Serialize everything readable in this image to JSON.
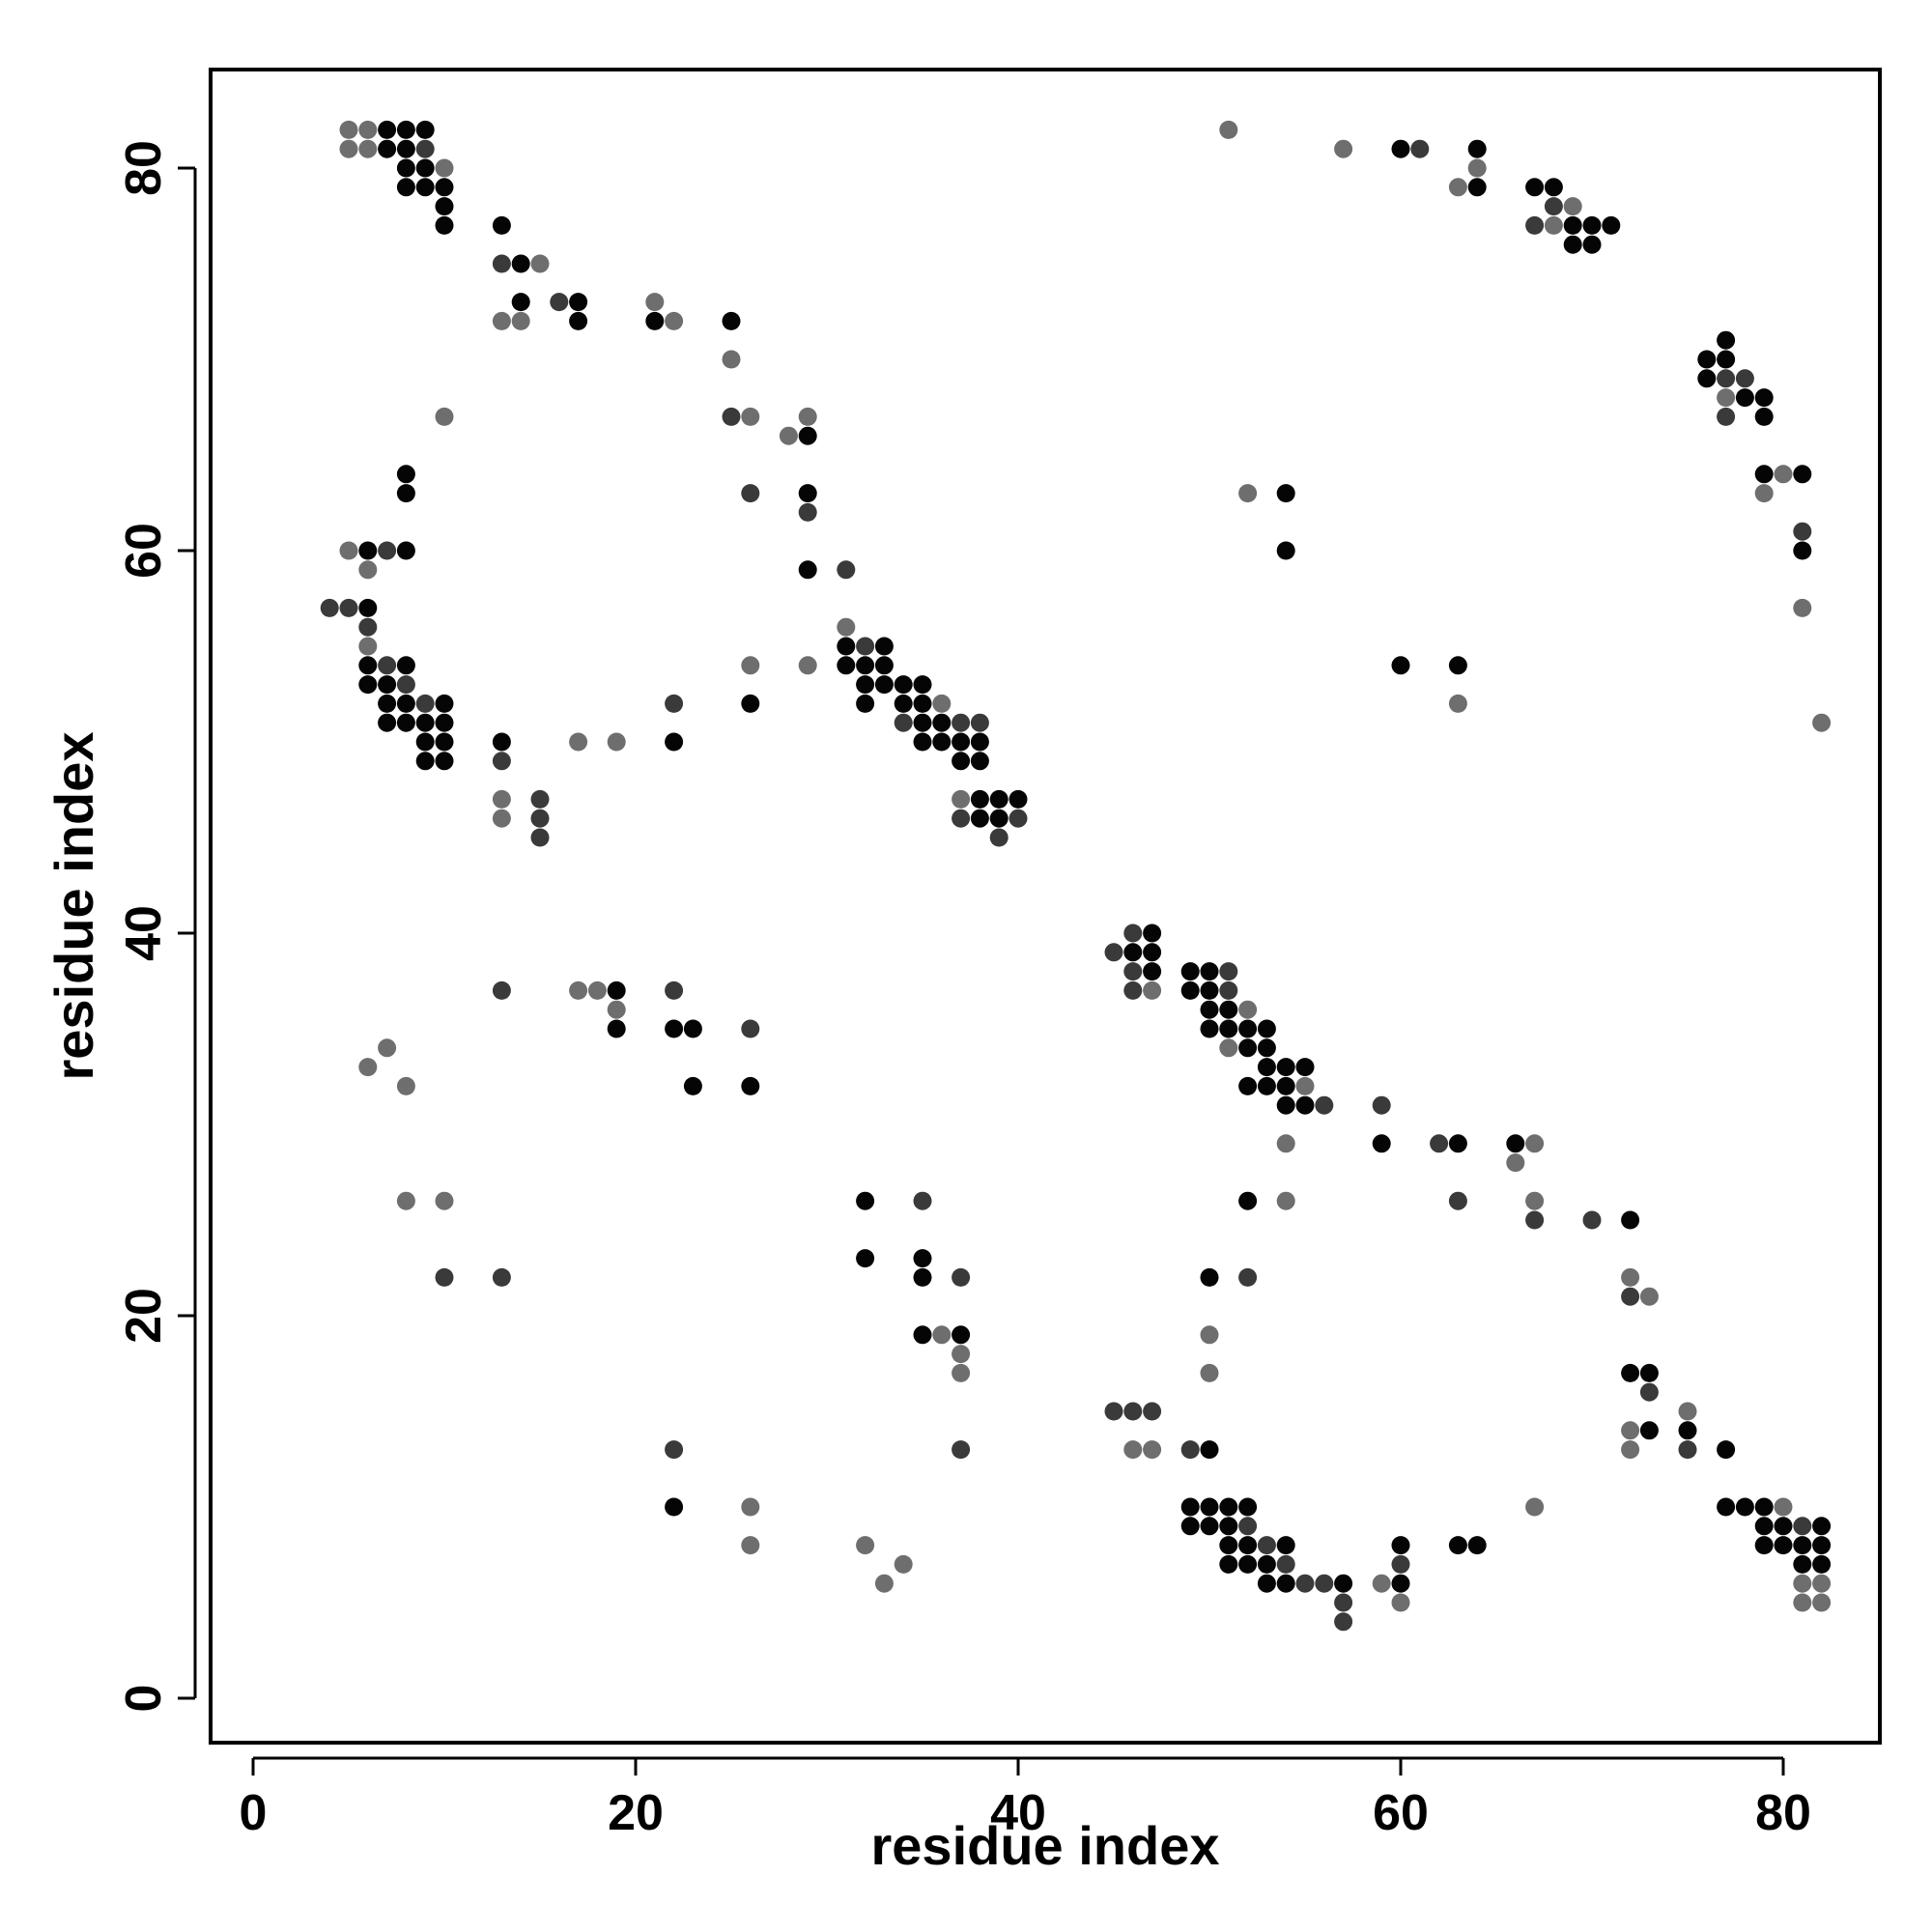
{
  "chart_data": {
    "type": "scatter",
    "title": "",
    "xlabel": "residue index",
    "ylabel": "residue index",
    "xlim": [
      -2.3,
      85
    ],
    "ylim": [
      -2.3,
      85
    ],
    "xticks": [
      0,
      20,
      40,
      60,
      80
    ],
    "yticks": [
      0,
      20,
      40,
      60,
      80
    ],
    "grid": false,
    "legend": "none",
    "shade_colors": {
      "dark": "#050505",
      "mid": "#3a3a3a",
      "light": "#6e6e6e"
    },
    "points": [
      [
        5,
        81,
        "l"
      ],
      [
        6,
        81,
        "l"
      ],
      [
        7,
        81,
        "d"
      ],
      [
        8,
        81,
        "d"
      ],
      [
        9,
        81,
        "m"
      ],
      [
        5,
        82,
        "l"
      ],
      [
        6,
        82,
        "l"
      ],
      [
        7,
        82,
        "d"
      ],
      [
        8,
        82,
        "d"
      ],
      [
        9,
        82,
        "d"
      ],
      [
        8,
        80,
        "d"
      ],
      [
        9,
        80,
        "d"
      ],
      [
        10,
        80,
        "l"
      ],
      [
        8,
        79,
        "d"
      ],
      [
        9,
        79,
        "d"
      ],
      [
        10,
        79,
        "d"
      ],
      [
        10,
        78,
        "d"
      ],
      [
        10,
        77,
        "d"
      ],
      [
        13,
        77,
        "d"
      ],
      [
        13,
        75,
        "m"
      ],
      [
        14,
        75,
        "d"
      ],
      [
        15,
        75,
        "l"
      ],
      [
        14,
        73,
        "d"
      ],
      [
        16,
        73,
        "m"
      ],
      [
        17,
        73,
        "d"
      ],
      [
        13,
        72,
        "l"
      ],
      [
        14,
        72,
        "l"
      ],
      [
        17,
        72,
        "d"
      ],
      [
        21,
        73,
        "l"
      ],
      [
        21,
        72,
        "d"
      ],
      [
        22,
        72,
        "l"
      ],
      [
        25,
        72,
        "d"
      ],
      [
        25,
        70,
        "l"
      ],
      [
        25,
        67,
        "m"
      ],
      [
        26,
        67,
        "l"
      ],
      [
        28,
        66,
        "l"
      ],
      [
        29,
        67,
        "l"
      ],
      [
        29,
        66,
        "d"
      ],
      [
        26,
        63,
        "m"
      ],
      [
        29,
        63,
        "d"
      ],
      [
        29,
        62,
        "m"
      ],
      [
        29,
        59,
        "d"
      ],
      [
        31,
        59,
        "m"
      ],
      [
        10,
        67,
        "l"
      ],
      [
        8,
        64,
        "d"
      ],
      [
        8,
        63,
        "d"
      ],
      [
        5,
        60,
        "l"
      ],
      [
        6,
        60,
        "d"
      ],
      [
        7,
        60,
        "m"
      ],
      [
        8,
        60,
        "d"
      ],
      [
        6,
        59,
        "l"
      ],
      [
        4,
        57,
        "m"
      ],
      [
        5,
        57,
        "m"
      ],
      [
        6,
        57,
        "d"
      ],
      [
        6,
        56,
        "m"
      ],
      [
        6,
        55,
        "l"
      ],
      [
        6,
        54,
        "d"
      ],
      [
        7,
        54,
        "m"
      ],
      [
        8,
        54,
        "d"
      ],
      [
        6,
        53,
        "d"
      ],
      [
        7,
        53,
        "d"
      ],
      [
        8,
        53,
        "m"
      ],
      [
        7,
        52,
        "d"
      ],
      [
        8,
        52,
        "d"
      ],
      [
        9,
        52,
        "m"
      ],
      [
        10,
        52,
        "d"
      ],
      [
        7,
        51,
        "d"
      ],
      [
        8,
        51,
        "d"
      ],
      [
        9,
        51,
        "d"
      ],
      [
        10,
        51,
        "d"
      ],
      [
        9,
        50,
        "d"
      ],
      [
        10,
        50,
        "d"
      ],
      [
        9,
        49,
        "d"
      ],
      [
        10,
        49,
        "d"
      ],
      [
        13,
        50,
        "d"
      ],
      [
        13,
        49,
        "m"
      ],
      [
        13,
        47,
        "l"
      ],
      [
        15,
        47,
        "m"
      ],
      [
        13,
        46,
        "l"
      ],
      [
        15,
        46,
        "m"
      ],
      [
        15,
        45,
        "m"
      ],
      [
        17,
        50,
        "l"
      ],
      [
        19,
        50,
        "l"
      ],
      [
        22,
        52,
        "m"
      ],
      [
        22,
        50,
        "d"
      ],
      [
        26,
        54,
        "l"
      ],
      [
        26,
        52,
        "d"
      ],
      [
        29,
        54,
        "l"
      ],
      [
        31,
        56,
        "l"
      ],
      [
        31,
        55,
        "d"
      ],
      [
        32,
        55,
        "m"
      ],
      [
        33,
        55,
        "d"
      ],
      [
        31,
        54,
        "d"
      ],
      [
        32,
        54,
        "d"
      ],
      [
        33,
        54,
        "d"
      ],
      [
        32,
        53,
        "d"
      ],
      [
        33,
        53,
        "d"
      ],
      [
        34,
        53,
        "d"
      ],
      [
        35,
        53,
        "d"
      ],
      [
        32,
        52,
        "d"
      ],
      [
        34,
        52,
        "d"
      ],
      [
        35,
        52,
        "d"
      ],
      [
        36,
        52,
        "l"
      ],
      [
        34,
        51,
        "m"
      ],
      [
        35,
        51,
        "d"
      ],
      [
        36,
        51,
        "d"
      ],
      [
        37,
        51,
        "m"
      ],
      [
        38,
        51,
        "m"
      ],
      [
        35,
        50,
        "d"
      ],
      [
        36,
        50,
        "d"
      ],
      [
        37,
        50,
        "d"
      ],
      [
        38,
        50,
        "d"
      ],
      [
        37,
        49,
        "d"
      ],
      [
        38,
        49,
        "d"
      ],
      [
        37,
        47,
        "l"
      ],
      [
        38,
        47,
        "d"
      ],
      [
        39,
        47,
        "d"
      ],
      [
        40,
        47,
        "d"
      ],
      [
        37,
        46,
        "m"
      ],
      [
        38,
        46,
        "d"
      ],
      [
        39,
        46,
        "d"
      ],
      [
        40,
        46,
        "m"
      ],
      [
        39,
        45,
        "m"
      ],
      [
        51,
        82,
        "l"
      ],
      [
        57,
        81,
        "l"
      ],
      [
        60,
        81,
        "d"
      ],
      [
        61,
        81,
        "m"
      ],
      [
        64,
        81,
        "d"
      ],
      [
        64,
        80,
        "l"
      ],
      [
        63,
        79,
        "l"
      ],
      [
        64,
        79,
        "d"
      ],
      [
        67,
        79,
        "d"
      ],
      [
        68,
        79,
        "d"
      ],
      [
        68,
        78,
        "m"
      ],
      [
        69,
        78,
        "l"
      ],
      [
        67,
        77,
        "m"
      ],
      [
        68,
        77,
        "l"
      ],
      [
        69,
        77,
        "d"
      ],
      [
        70,
        77,
        "d"
      ],
      [
        71,
        77,
        "d"
      ],
      [
        69,
        76,
        "d"
      ],
      [
        70,
        76,
        "d"
      ],
      [
        77,
        71,
        "d"
      ],
      [
        76,
        70,
        "d"
      ],
      [
        77,
        70,
        "d"
      ],
      [
        76,
        69,
        "d"
      ],
      [
        77,
        69,
        "m"
      ],
      [
        78,
        69,
        "m"
      ],
      [
        77,
        68,
        "l"
      ],
      [
        78,
        68,
        "d"
      ],
      [
        79,
        68,
        "d"
      ],
      [
        77,
        67,
        "m"
      ],
      [
        79,
        67,
        "d"
      ],
      [
        79,
        64,
        "d"
      ],
      [
        80,
        64,
        "l"
      ],
      [
        81,
        64,
        "d"
      ],
      [
        79,
        63,
        "l"
      ],
      [
        81,
        61,
        "m"
      ],
      [
        81,
        60,
        "d"
      ],
      [
        81,
        57,
        "l"
      ],
      [
        82,
        51,
        "l"
      ],
      [
        52,
        63,
        "l"
      ],
      [
        54,
        63,
        "d"
      ],
      [
        54,
        60,
        "d"
      ],
      [
        60,
        54,
        "d"
      ],
      [
        63,
        54,
        "d"
      ],
      [
        63,
        52,
        "l"
      ],
      [
        45,
        39,
        "m"
      ],
      [
        46,
        40,
        "m"
      ],
      [
        47,
        40,
        "d"
      ],
      [
        46,
        39,
        "d"
      ],
      [
        47,
        39,
        "d"
      ],
      [
        46,
        38,
        "m"
      ],
      [
        47,
        38,
        "d"
      ],
      [
        46,
        37,
        "m"
      ],
      [
        47,
        37,
        "l"
      ],
      [
        49,
        38,
        "d"
      ],
      [
        50,
        38,
        "d"
      ],
      [
        51,
        38,
        "m"
      ],
      [
        49,
        37,
        "d"
      ],
      [
        50,
        37,
        "d"
      ],
      [
        51,
        37,
        "m"
      ],
      [
        50,
        36,
        "d"
      ],
      [
        51,
        36,
        "d"
      ],
      [
        52,
        36,
        "l"
      ],
      [
        50,
        35,
        "d"
      ],
      [
        51,
        35,
        "d"
      ],
      [
        52,
        35,
        "d"
      ],
      [
        53,
        35,
        "d"
      ],
      [
        51,
        34,
        "l"
      ],
      [
        52,
        34,
        "d"
      ],
      [
        53,
        34,
        "d"
      ],
      [
        53,
        33,
        "d"
      ],
      [
        54,
        33,
        "d"
      ],
      [
        55,
        33,
        "d"
      ],
      [
        52,
        32,
        "d"
      ],
      [
        53,
        32,
        "d"
      ],
      [
        54,
        32,
        "d"
      ],
      [
        55,
        32,
        "l"
      ],
      [
        54,
        31,
        "d"
      ],
      [
        55,
        31,
        "d"
      ],
      [
        56,
        31,
        "m"
      ],
      [
        59,
        31,
        "m"
      ],
      [
        54,
        29,
        "l"
      ],
      [
        59,
        29,
        "d"
      ],
      [
        62,
        29,
        "m"
      ],
      [
        63,
        29,
        "d"
      ],
      [
        66,
        29,
        "d"
      ],
      [
        67,
        29,
        "l"
      ],
      [
        66,
        28,
        "l"
      ],
      [
        52,
        26,
        "d"
      ],
      [
        54,
        26,
        "l"
      ],
      [
        63,
        26,
        "m"
      ],
      [
        67,
        26,
        "l"
      ],
      [
        67,
        25,
        "m"
      ],
      [
        70,
        25,
        "m"
      ],
      [
        72,
        25,
        "d"
      ],
      [
        72,
        22,
        "l"
      ],
      [
        72,
        21,
        "m"
      ],
      [
        73,
        21,
        "l"
      ],
      [
        72,
        17,
        "d"
      ],
      [
        73,
        17,
        "d"
      ],
      [
        73,
        16,
        "m"
      ],
      [
        75,
        15,
        "l"
      ],
      [
        72,
        14,
        "l"
      ],
      [
        73,
        14,
        "d"
      ],
      [
        75,
        14,
        "d"
      ],
      [
        72,
        13,
        "l"
      ],
      [
        75,
        13,
        "m"
      ],
      [
        77,
        13,
        "d"
      ],
      [
        77,
        10,
        "d"
      ],
      [
        78,
        10,
        "d"
      ],
      [
        79,
        10,
        "d"
      ],
      [
        80,
        10,
        "l"
      ],
      [
        79,
        9,
        "d"
      ],
      [
        80,
        9,
        "d"
      ],
      [
        81,
        9,
        "m"
      ],
      [
        82,
        9,
        "d"
      ],
      [
        79,
        8,
        "d"
      ],
      [
        80,
        8,
        "d"
      ],
      [
        81,
        8,
        "d"
      ],
      [
        82,
        8,
        "d"
      ],
      [
        81,
        7,
        "d"
      ],
      [
        82,
        7,
        "d"
      ],
      [
        81,
        6,
        "l"
      ],
      [
        82,
        6,
        "l"
      ],
      [
        81,
        5,
        "l"
      ],
      [
        82,
        5,
        "l"
      ],
      [
        19,
        37,
        "d"
      ],
      [
        13,
        37,
        "m"
      ],
      [
        17,
        37,
        "l"
      ],
      [
        18,
        37,
        "l"
      ],
      [
        19,
        36,
        "l"
      ],
      [
        19,
        35,
        "d"
      ],
      [
        22,
        37,
        "m"
      ],
      [
        22,
        35,
        "d"
      ],
      [
        23,
        35,
        "d"
      ],
      [
        26,
        35,
        "m"
      ],
      [
        6,
        33,
        "l"
      ],
      [
        7,
        34,
        "l"
      ],
      [
        8,
        32,
        "l"
      ],
      [
        23,
        32,
        "d"
      ],
      [
        26,
        32,
        "d"
      ],
      [
        8,
        26,
        "l"
      ],
      [
        10,
        26,
        "l"
      ],
      [
        10,
        22,
        "m"
      ],
      [
        13,
        22,
        "m"
      ],
      [
        32,
        26,
        "d"
      ],
      [
        35,
        26,
        "m"
      ],
      [
        32,
        23,
        "d"
      ],
      [
        35,
        23,
        "d"
      ],
      [
        35,
        22,
        "d"
      ],
      [
        37,
        22,
        "m"
      ],
      [
        35,
        19,
        "d"
      ],
      [
        36,
        19,
        "l"
      ],
      [
        37,
        19,
        "d"
      ],
      [
        37,
        18,
        "l"
      ],
      [
        37,
        17,
        "l"
      ],
      [
        37,
        13,
        "m"
      ],
      [
        22,
        13,
        "m"
      ],
      [
        22,
        10,
        "d"
      ],
      [
        26,
        10,
        "l"
      ],
      [
        26,
        8,
        "l"
      ],
      [
        32,
        8,
        "l"
      ],
      [
        34,
        7,
        "l"
      ],
      [
        33,
        6,
        "l"
      ],
      [
        50,
        22,
        "d"
      ],
      [
        52,
        22,
        "m"
      ],
      [
        50,
        19,
        "l"
      ],
      [
        50,
        17,
        "l"
      ],
      [
        45,
        15,
        "m"
      ],
      [
        46,
        15,
        "m"
      ],
      [
        47,
        15,
        "m"
      ],
      [
        46,
        13,
        "l"
      ],
      [
        47,
        13,
        "l"
      ],
      [
        49,
        13,
        "m"
      ],
      [
        50,
        13,
        "d"
      ],
      [
        49,
        10,
        "d"
      ],
      [
        50,
        10,
        "d"
      ],
      [
        51,
        10,
        "d"
      ],
      [
        52,
        10,
        "d"
      ],
      [
        49,
        9,
        "d"
      ],
      [
        50,
        9,
        "d"
      ],
      [
        51,
        9,
        "d"
      ],
      [
        52,
        9,
        "m"
      ],
      [
        51,
        8,
        "d"
      ],
      [
        52,
        8,
        "d"
      ],
      [
        53,
        8,
        "m"
      ],
      [
        54,
        8,
        "d"
      ],
      [
        51,
        7,
        "d"
      ],
      [
        52,
        7,
        "d"
      ],
      [
        53,
        7,
        "d"
      ],
      [
        54,
        7,
        "m"
      ],
      [
        53,
        6,
        "d"
      ],
      [
        54,
        6,
        "d"
      ],
      [
        55,
        6,
        "m"
      ],
      [
        56,
        6,
        "m"
      ],
      [
        57,
        6,
        "d"
      ],
      [
        57,
        5,
        "m"
      ],
      [
        57,
        4,
        "m"
      ],
      [
        59,
        6,
        "l"
      ],
      [
        60,
        8,
        "d"
      ],
      [
        60,
        7,
        "m"
      ],
      [
        60,
        6,
        "d"
      ],
      [
        60,
        5,
        "l"
      ],
      [
        63,
        8,
        "d"
      ],
      [
        64,
        8,
        "d"
      ],
      [
        67,
        10,
        "l"
      ]
    ]
  }
}
